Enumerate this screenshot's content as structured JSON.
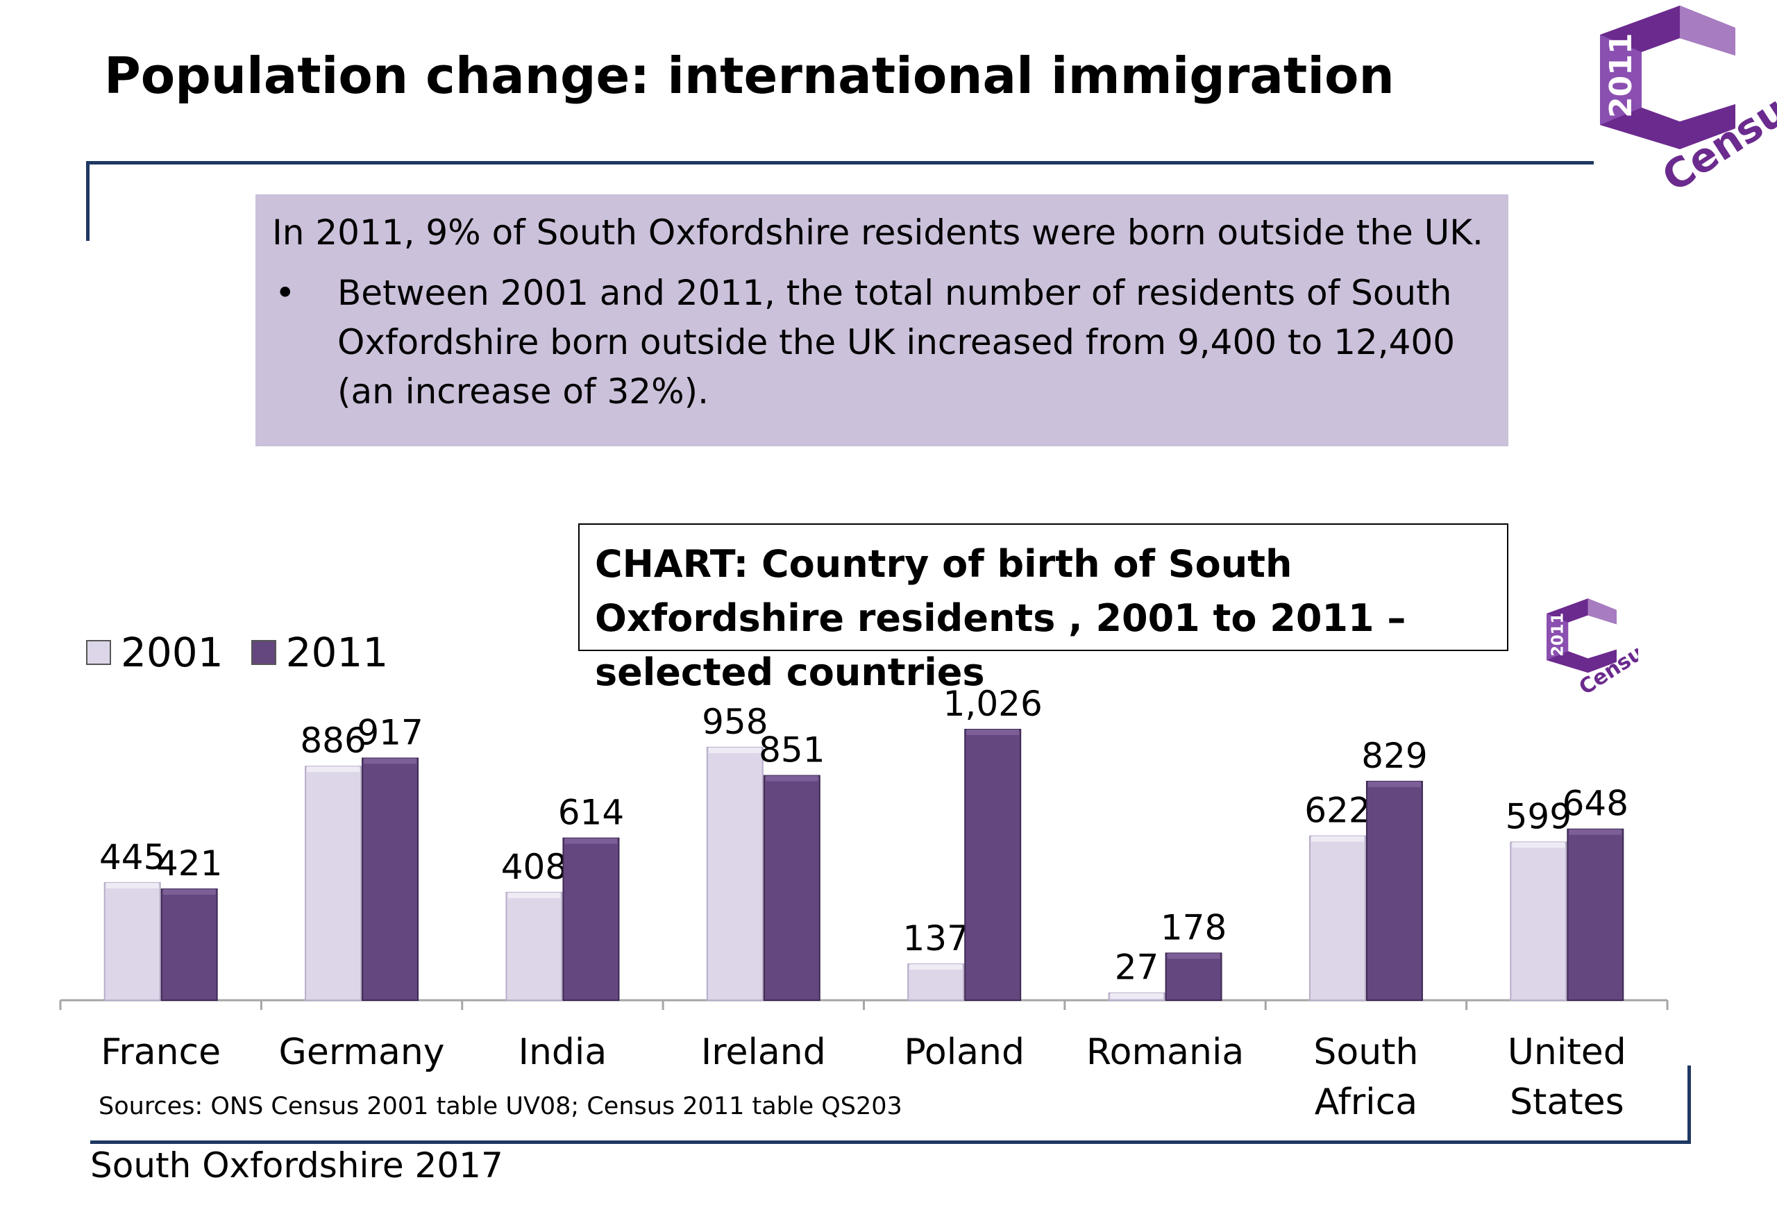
{
  "slide": {
    "title": "Population change: international immigration",
    "info_line": "In 2011, 9% of South Oxfordshire residents were born outside the UK.",
    "bullet_mark": "•",
    "bullet_text": "Between 2001 and 2011, the total number of residents of South Oxfordshire born outside the UK increased from 9,400 to 12,400 (an increase of 32%).",
    "sources": "Sources: ONS Census 2001 table UV08; Census 2011 table QS203",
    "footer": "South Oxfordshire  2017"
  },
  "logo": {
    "year": "2011",
    "word": "Census",
    "colors": {
      "purple": "#6b2a8e",
      "light_purple": "#a77cc0"
    }
  },
  "colors": {
    "rule": "#1f3863",
    "info_box_bg": "#cbc1da",
    "series_2001": "#ddd6e8",
    "series_2011": "#65477f",
    "axis": "#a6a6a6"
  },
  "chart_data": {
    "type": "bar",
    "title": "CHART: Country of birth of South Oxfordshire residents , 2001 to 2011 – selected countries",
    "categories": [
      "France",
      "Germany",
      "India",
      "Ireland",
      "Poland",
      "Romania",
      "South Africa",
      "United States"
    ],
    "category_lines": [
      [
        "France"
      ],
      [
        "Germany"
      ],
      [
        "India"
      ],
      [
        "Ireland"
      ],
      [
        "Poland"
      ],
      [
        "Romania"
      ],
      [
        "South",
        "Africa"
      ],
      [
        "United",
        "States"
      ]
    ],
    "series": [
      {
        "name": "2001",
        "values": [
          445,
          886,
          408,
          958,
          137,
          27,
          622,
          599
        ],
        "labels": [
          "445",
          "886",
          "408",
          "958",
          "137",
          "27",
          "622",
          "599"
        ]
      },
      {
        "name": "2011",
        "values": [
          421,
          917,
          614,
          851,
          1026,
          178,
          829,
          648
        ],
        "labels": [
          "421",
          "917",
          "614",
          "851",
          "1,026",
          "178",
          "829",
          "648"
        ]
      }
    ],
    "ylim": [
      0,
      1026
    ],
    "legend_position": "top-left",
    "grid": false
  }
}
